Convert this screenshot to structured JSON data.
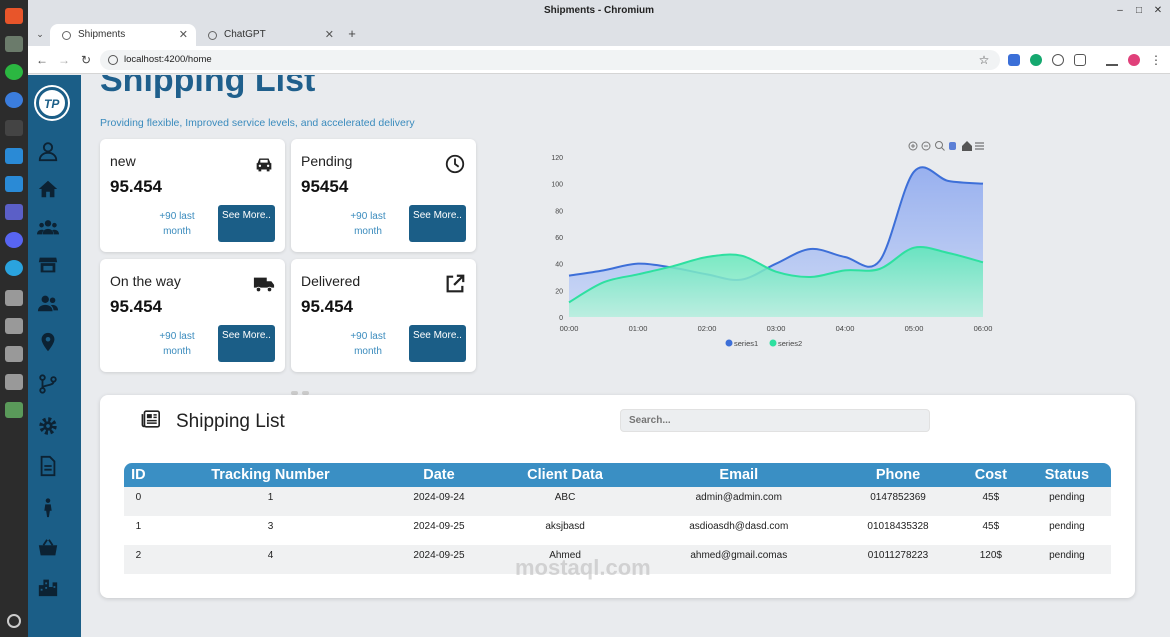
{
  "browser": {
    "window_title": "Shipments - Chromium",
    "tabs": [
      {
        "label": "Shipments",
        "active": true
      },
      {
        "label": "ChatGPT",
        "active": false
      }
    ],
    "url": "localhost:4200/home"
  },
  "page": {
    "title": "Shipping List",
    "subtitle": "Providing flexible, Improved service levels, and accelerated delivery"
  },
  "cards": [
    {
      "label": "new",
      "value": "95.454",
      "note": "+90 last month",
      "button": "See More..",
      "icon": "car-icon"
    },
    {
      "label": "Pending",
      "value": "95454",
      "note": "+90 last month",
      "button": "See More..",
      "icon": "clock-icon"
    },
    {
      "label": "On the way",
      "value": "95.454",
      "note": "+90 last month",
      "button": "See More..",
      "icon": "truck-icon"
    },
    {
      "label": "Delivered",
      "value": "95.454",
      "note": "+90 last month",
      "button": "See More..",
      "icon": "external-link-icon"
    }
  ],
  "chart_data": {
    "type": "area",
    "x": [
      "00:00",
      "01:00",
      "02:00",
      "03:00",
      "04:00",
      "05:00",
      "06:00"
    ],
    "series": [
      {
        "name": "series1",
        "color": "#3d6fd8",
        "points": [
          [
            0,
            31
          ],
          [
            0.5,
            35
          ],
          [
            1,
            40
          ],
          [
            1.5,
            37
          ],
          [
            2,
            32
          ],
          [
            2.5,
            28
          ],
          [
            3,
            40
          ],
          [
            3.5,
            51
          ],
          [
            4,
            45
          ],
          [
            4.5,
            42
          ],
          [
            5,
            109
          ],
          [
            5.5,
            102
          ],
          [
            6,
            100
          ]
        ]
      },
      {
        "name": "series2",
        "color": "#2ee0a0",
        "points": [
          [
            0,
            11
          ],
          [
            0.5,
            26
          ],
          [
            1,
            32
          ],
          [
            1.5,
            38
          ],
          [
            2,
            45
          ],
          [
            2.5,
            46
          ],
          [
            3,
            34
          ],
          [
            3.5,
            30
          ],
          [
            4,
            35
          ],
          [
            4.5,
            36
          ],
          [
            5,
            52
          ],
          [
            5.5,
            48
          ],
          [
            6,
            41
          ]
        ]
      }
    ],
    "xlabel": "",
    "ylabel": "",
    "ylim": [
      0,
      120
    ],
    "yticks": [
      0,
      20,
      40,
      60,
      80,
      100,
      120
    ],
    "legend": "bottom-center",
    "grid": false
  },
  "table": {
    "title": "Shipping List",
    "search_placeholder": "Search...",
    "columns": [
      "ID",
      "Tracking Number",
      "Date",
      "Client Data",
      "Email",
      "Phone",
      "Cost",
      "Status"
    ],
    "rows": [
      [
        "0",
        "1",
        "2024-09-24",
        "ABC",
        "admin@admin.com",
        "0147852369",
        "45$",
        "pending"
      ],
      [
        "1",
        "3",
        "2024-09-25",
        "aksjbasd",
        "asdioasdh@dasd.com",
        "01018435328",
        "45$",
        "pending"
      ],
      [
        "2",
        "4",
        "2024-09-25",
        "Ahmed",
        "ahmed@gmail.comas",
        "01011278223",
        "120$",
        "pending"
      ]
    ]
  },
  "watermark": "mostaql.com"
}
